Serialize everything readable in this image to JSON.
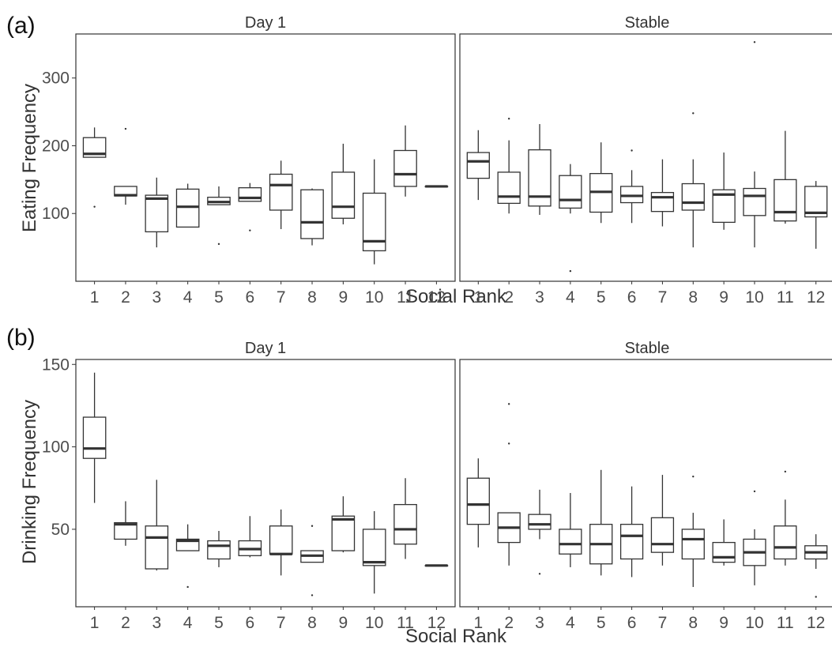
{
  "chart_data": [
    {
      "type": "box",
      "panel_label": "(a)",
      "facets": [
        "Day 1",
        "Stable"
      ],
      "xlabel": "Social Rank",
      "ylabel": "Eating Frequency",
      "categories": [
        "1",
        "2",
        "3",
        "4",
        "5",
        "6",
        "7",
        "8",
        "9",
        "10",
        "11",
        "12"
      ],
      "yticks": [
        "100",
        "200",
        "300"
      ],
      "ylim": [
        0,
        365
      ],
      "grid": false,
      "series": [
        {
          "facet": "Day 1",
          "boxes": [
            {
              "whislo": 183,
              "q1": 183,
              "med": 188,
              "q3": 212,
              "whishi": 227,
              "fliers": [
                110
              ]
            },
            {
              "whislo": 113,
              "q1": 126,
              "med": 127,
              "q3": 140,
              "whishi": 140,
              "fliers": [
                225
              ]
            },
            {
              "whislo": 50,
              "q1": 73,
              "med": 122,
              "q3": 127,
              "whishi": 153,
              "fliers": []
            },
            {
              "whislo": 80,
              "q1": 80,
              "med": 110,
              "q3": 136,
              "whishi": 144,
              "fliers": []
            },
            {
              "whislo": 113,
              "q1": 113,
              "med": 117,
              "q3": 124,
              "whishi": 140,
              "fliers": [
                55
              ]
            },
            {
              "whislo": 118,
              "q1": 118,
              "med": 123,
              "q3": 138,
              "whishi": 145,
              "fliers": [
                75
              ]
            },
            {
              "whislo": 77,
              "q1": 105,
              "med": 142,
              "q3": 158,
              "whishi": 178,
              "fliers": []
            },
            {
              "whislo": 53,
              "q1": 63,
              "med": 87,
              "q3": 135,
              "whishi": 137,
              "fliers": []
            },
            {
              "whislo": 84,
              "q1": 93,
              "med": 110,
              "q3": 161,
              "whishi": 203,
              "fliers": []
            },
            {
              "whislo": 25,
              "q1": 45,
              "med": 59,
              "q3": 130,
              "whishi": 180,
              "fliers": []
            },
            {
              "whislo": 125,
              "q1": 140,
              "med": 158,
              "q3": 193,
              "whishi": 230,
              "fliers": []
            },
            {
              "whislo": 140,
              "q1": 140,
              "med": 140,
              "q3": 140,
              "whishi": 140,
              "fliers": []
            }
          ]
        },
        {
          "facet": "Stable",
          "boxes": [
            {
              "whislo": 120,
              "q1": 152,
              "med": 177,
              "q3": 190,
              "whishi": 223,
              "fliers": []
            },
            {
              "whislo": 100,
              "q1": 115,
              "med": 125,
              "q3": 161,
              "whishi": 208,
              "fliers": [
                240
              ]
            },
            {
              "whislo": 98,
              "q1": 111,
              "med": 125,
              "q3": 194,
              "whishi": 232,
              "fliers": []
            },
            {
              "whislo": 100,
              "q1": 108,
              "med": 120,
              "q3": 156,
              "whishi": 173,
              "fliers": [
                15
              ]
            },
            {
              "whislo": 86,
              "q1": 102,
              "med": 132,
              "q3": 159,
              "whishi": 205,
              "fliers": []
            },
            {
              "whislo": 86,
              "q1": 116,
              "med": 126,
              "q3": 140,
              "whishi": 164,
              "fliers": [
                193
              ]
            },
            {
              "whislo": 81,
              "q1": 103,
              "med": 124,
              "q3": 131,
              "whishi": 180,
              "fliers": []
            },
            {
              "whislo": 50,
              "q1": 105,
              "med": 116,
              "q3": 144,
              "whishi": 180,
              "fliers": [
                248
              ]
            },
            {
              "whislo": 76,
              "q1": 87,
              "med": 128,
              "q3": 135,
              "whishi": 190,
              "fliers": []
            },
            {
              "whislo": 50,
              "q1": 97,
              "med": 126,
              "q3": 137,
              "whishi": 162,
              "fliers": [
                353
              ]
            },
            {
              "whislo": 85,
              "q1": 89,
              "med": 102,
              "q3": 150,
              "whishi": 222,
              "fliers": []
            },
            {
              "whislo": 48,
              "q1": 95,
              "med": 101,
              "q3": 140,
              "whishi": 148,
              "fliers": []
            }
          ]
        }
      ]
    },
    {
      "type": "box",
      "panel_label": "(b)",
      "facets": [
        "Day 1",
        "Stable"
      ],
      "xlabel": "Social Rank",
      "ylabel": "Drinking Frequency",
      "categories": [
        "1",
        "2",
        "3",
        "4",
        "5",
        "6",
        "7",
        "8",
        "9",
        "10",
        "11",
        "12"
      ],
      "yticks": [
        "50",
        "100",
        "150"
      ],
      "ylim": [
        3,
        153
      ],
      "grid": false,
      "series": [
        {
          "facet": "Day 1",
          "boxes": [
            {
              "whislo": 66,
              "q1": 93,
              "med": 99,
              "q3": 118,
              "whishi": 145,
              "fliers": []
            },
            {
              "whislo": 40,
              "q1": 44,
              "med": 53,
              "q3": 54,
              "whishi": 67,
              "fliers": []
            },
            {
              "whislo": 25,
              "q1": 26,
              "med": 45,
              "q3": 52,
              "whishi": 80,
              "fliers": []
            },
            {
              "whislo": 37,
              "q1": 37,
              "med": 43,
              "q3": 44,
              "whishi": 53,
              "fliers": [
                15
              ]
            },
            {
              "whislo": 27,
              "q1": 32,
              "med": 40,
              "q3": 43,
              "whishi": 49,
              "fliers": []
            },
            {
              "whislo": 33,
              "q1": 34,
              "med": 38,
              "q3": 43,
              "whishi": 58,
              "fliers": []
            },
            {
              "whislo": 22,
              "q1": 35,
              "med": 35,
              "q3": 52,
              "whishi": 62,
              "fliers": []
            },
            {
              "whislo": 30,
              "q1": 30,
              "med": 34,
              "q3": 37,
              "whishi": 37,
              "fliers": [
                52,
                10
              ]
            },
            {
              "whislo": 36,
              "q1": 37,
              "med": 56,
              "q3": 58,
              "whishi": 70,
              "fliers": []
            },
            {
              "whislo": 11,
              "q1": 28,
              "med": 30,
              "q3": 50,
              "whishi": 61,
              "fliers": []
            },
            {
              "whislo": 32,
              "q1": 41,
              "med": 50,
              "q3": 65,
              "whishi": 81,
              "fliers": []
            },
            {
              "whislo": 28,
              "q1": 28,
              "med": 28,
              "q3": 28,
              "whishi": 28,
              "fliers": []
            }
          ]
        },
        {
          "facet": "Stable",
          "boxes": [
            {
              "whislo": 39,
              "q1": 53,
              "med": 65,
              "q3": 81,
              "whishi": 93,
              "fliers": []
            },
            {
              "whislo": 28,
              "q1": 42,
              "med": 51,
              "q3": 60,
              "whishi": 60,
              "fliers": [
                126,
                102
              ]
            },
            {
              "whislo": 44,
              "q1": 50,
              "med": 53,
              "q3": 59,
              "whishi": 74,
              "fliers": [
                23
              ]
            },
            {
              "whislo": 27,
              "q1": 35,
              "med": 41,
              "q3": 50,
              "whishi": 72,
              "fliers": []
            },
            {
              "whislo": 22,
              "q1": 29,
              "med": 41,
              "q3": 53,
              "whishi": 86,
              "fliers": []
            },
            {
              "whislo": 21,
              "q1": 32,
              "med": 46,
              "q3": 53,
              "whishi": 76,
              "fliers": []
            },
            {
              "whislo": 28,
              "q1": 36,
              "med": 41,
              "q3": 57,
              "whishi": 83,
              "fliers": []
            },
            {
              "whislo": 15,
              "q1": 32,
              "med": 44,
              "q3": 50,
              "whishi": 60,
              "fliers": [
                82
              ]
            },
            {
              "whislo": 28,
              "q1": 30,
              "med": 33,
              "q3": 42,
              "whishi": 56,
              "fliers": []
            },
            {
              "whislo": 16,
              "q1": 28,
              "med": 36,
              "q3": 44,
              "whishi": 50,
              "fliers": [
                73
              ]
            },
            {
              "whislo": 28,
              "q1": 32,
              "med": 39,
              "q3": 52,
              "whishi": 68,
              "fliers": [
                85
              ]
            },
            {
              "whislo": 26,
              "q1": 32,
              "med": 36,
              "q3": 40,
              "whishi": 47,
              "fliers": [
                9
              ]
            }
          ]
        }
      ]
    }
  ]
}
